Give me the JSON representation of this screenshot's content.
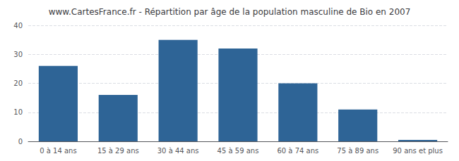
{
  "chart_data": {
    "type": "bar",
    "title": "www.CartesFrance.fr - Répartition par âge de la population masculine de Bio en 2007",
    "categories": [
      "0 à 14 ans",
      "15 à 29 ans",
      "30 à 44 ans",
      "45 à 59 ans",
      "60 à 74 ans",
      "75 à 89 ans",
      "90 ans et plus"
    ],
    "values": [
      26,
      16,
      35,
      32,
      20,
      11,
      0.5
    ],
    "color": "#2e6496",
    "ylim": [
      0,
      40
    ],
    "yticks": [
      0,
      10,
      20,
      30,
      40
    ],
    "grid": true
  }
}
